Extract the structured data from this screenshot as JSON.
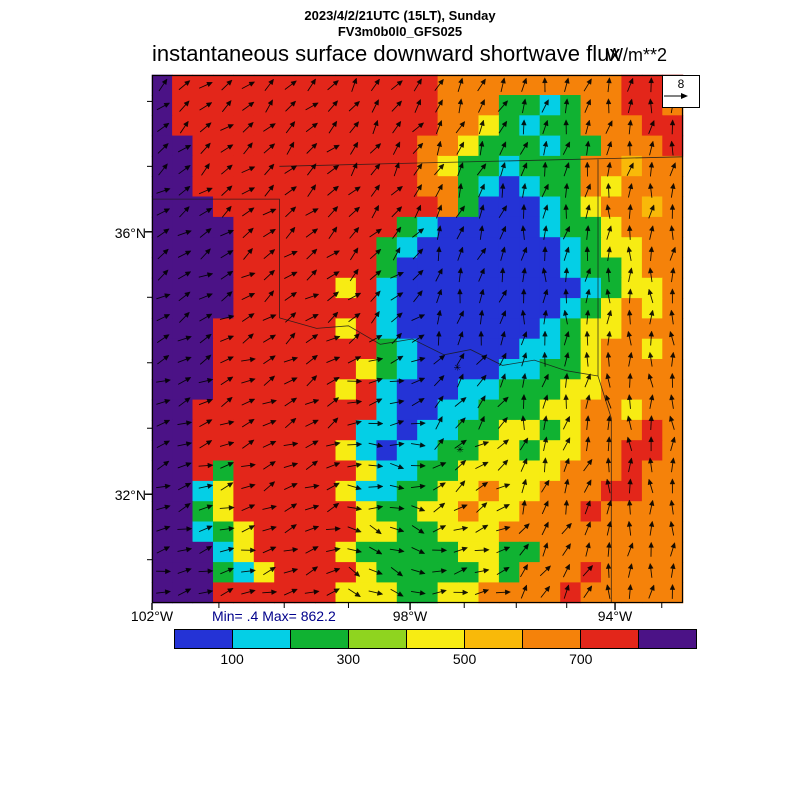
{
  "header": {
    "line1": "2023/4/2/21UTC (15LT), Sunday",
    "line2": "FV3m0b0l0_GFS025"
  },
  "chart_data": {
    "type": "heatmap",
    "title": "instantaneous surface downward shortwave flux",
    "units": "W/m**2",
    "stats_label": "Min= .4 Max= 862.2",
    "min": 0.4,
    "max": 862.2,
    "colorbar": {
      "colors": [
        "#2433d6",
        "#04cfe6",
        "#10b232",
        "#8fd41f",
        "#f7ec13",
        "#f9b909",
        "#f5820a",
        "#e3261a",
        "#4b1286"
      ],
      "boundaries": [
        100,
        200,
        300,
        400,
        500,
        600,
        700,
        800
      ],
      "tick_labels": [
        "100",
        "300",
        "500",
        "700"
      ],
      "tick_boundary_indices": [
        1,
        3,
        5,
        7
      ]
    },
    "axes": {
      "y_ticks": [
        {
          "label": "36°N",
          "pos": 29.7
        },
        {
          "label": "32°N",
          "pos": 79.4
        }
      ],
      "x_ticks": [
        {
          "label": "102°W",
          "pos": 0
        },
        {
          "label": "98°W",
          "pos": 48.6
        },
        {
          "label": "94°W",
          "pos": 87.2
        }
      ],
      "x_minor_pos": [
        0,
        12.6,
        24.9,
        37.0,
        48.6,
        58.8,
        68.6,
        78.1,
        87.2,
        96.0
      ],
      "y_minor_pos": [
        5.0,
        17.3,
        29.7,
        42.1,
        54.5,
        66.9,
        79.4,
        91.8
      ]
    },
    "grid": {
      "ncols": 26,
      "nrows": 26,
      "palette_index_rows": [
        "87777777777777666666666777",
        "87777777777777666221266776",
        "87777777777777664212266677",
        "88777777777776642221226667",
        "88777777777776422122266566",
        "88777777777776621012264666",
        "88877777777777620001246656",
        "88887777777721000001224666",
        "88887777777210000000124466",
        "88887777777200000000122466",
        "88887777747100000000012446",
        "88887777777100000000124646",
        "88877777747100000001244666",
        "88877777777210000011246646",
        "88877777774210000112246666",
        "88877777747100011222446666",
        "88777777777100112224466466",
        "88777777771101122442466676",
        "88777777741011224424466776",
        "88727777774112244444666766",
        "88147777741122446446667766",
        "88247777774224464466676666",
        "88124777774422444666666666",
        "88814777742222244226666666",
        "88821477774222224266676666",
        "88877777744422446666766666"
      ]
    },
    "wind": {
      "ref_label": "8",
      "directions_deg": [
        [
          50,
          45,
          35,
          25,
          15,
          10
        ],
        [
          55,
          50,
          40,
          20,
          10,
          5
        ],
        [
          60,
          55,
          50,
          15,
          5,
          0
        ],
        [
          65,
          60,
          75,
          35,
          10,
          355
        ],
        [
          70,
          65,
          95,
          55,
          20,
          0
        ],
        [
          75,
          70,
          115,
          75,
          30,
          5
        ]
      ]
    },
    "borders": [
      [
        [
          0,
          23.5
        ],
        [
          24,
          23.5
        ],
        [
          24,
          46
        ]
      ],
      [
        [
          24,
          46
        ],
        [
          31,
          48
        ],
        [
          37,
          47.5
        ],
        [
          43,
          51
        ],
        [
          49,
          50
        ],
        [
          55,
          53
        ],
        [
          60,
          52
        ],
        [
          66,
          55
        ],
        [
          72,
          54
        ],
        [
          78,
          56
        ],
        [
          84,
          57
        ]
      ],
      [
        [
          24,
          17.3
        ],
        [
          100,
          15.5
        ]
      ],
      [
        [
          84,
          16
        ],
        [
          84,
          57
        ],
        [
          86.5,
          65
        ],
        [
          86.5,
          100
        ]
      ]
    ],
    "markers": [
      [
        57.5,
        56.0
      ],
      [
        58.0,
        71.5
      ]
    ]
  }
}
